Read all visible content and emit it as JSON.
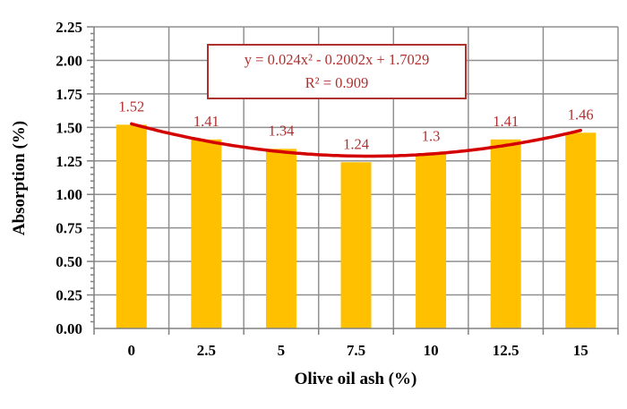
{
  "figure": {
    "background": "#ffffff"
  },
  "chart_data": {
    "type": "bar",
    "categories": [
      "0",
      "2.5",
      "5",
      "7.5",
      "10",
      "12.5",
      "15"
    ],
    "values": [
      1.52,
      1.41,
      1.34,
      1.24,
      1.3,
      1.41,
      1.46
    ],
    "data_labels": [
      "1.52",
      "1.41",
      "1.34",
      "1.24",
      "1.3",
      "1.41",
      "1.46"
    ],
    "xlabel": "Olive oil ash  (%)",
    "ylabel": "Absorption (%)",
    "ylim": [
      0,
      2.25
    ],
    "y_major_step": 0.25,
    "y_minor_step": 0.05,
    "y_tick_labels": [
      "0.00",
      "0.25",
      "0.50",
      "0.75",
      "1.00",
      "1.25",
      "1.50",
      "1.75",
      "2.00",
      "2.25"
    ],
    "grid": true,
    "legend": "none",
    "trendline": {
      "kind": "polynomial-degree-2",
      "equation": "y = 0.024x² - 0.2002x + 1.7029",
      "r_squared": "R² = 0.909",
      "coefficients": {
        "a": 0.024,
        "b": -0.2002,
        "c": 1.7029
      }
    },
    "colors": {
      "bar": "#ffc000",
      "trendline": "#d40000",
      "data_label": "#b03030",
      "annotation": "#b03030",
      "grid": "#909090",
      "axis": "#808080",
      "tick_label": "#000000"
    }
  }
}
